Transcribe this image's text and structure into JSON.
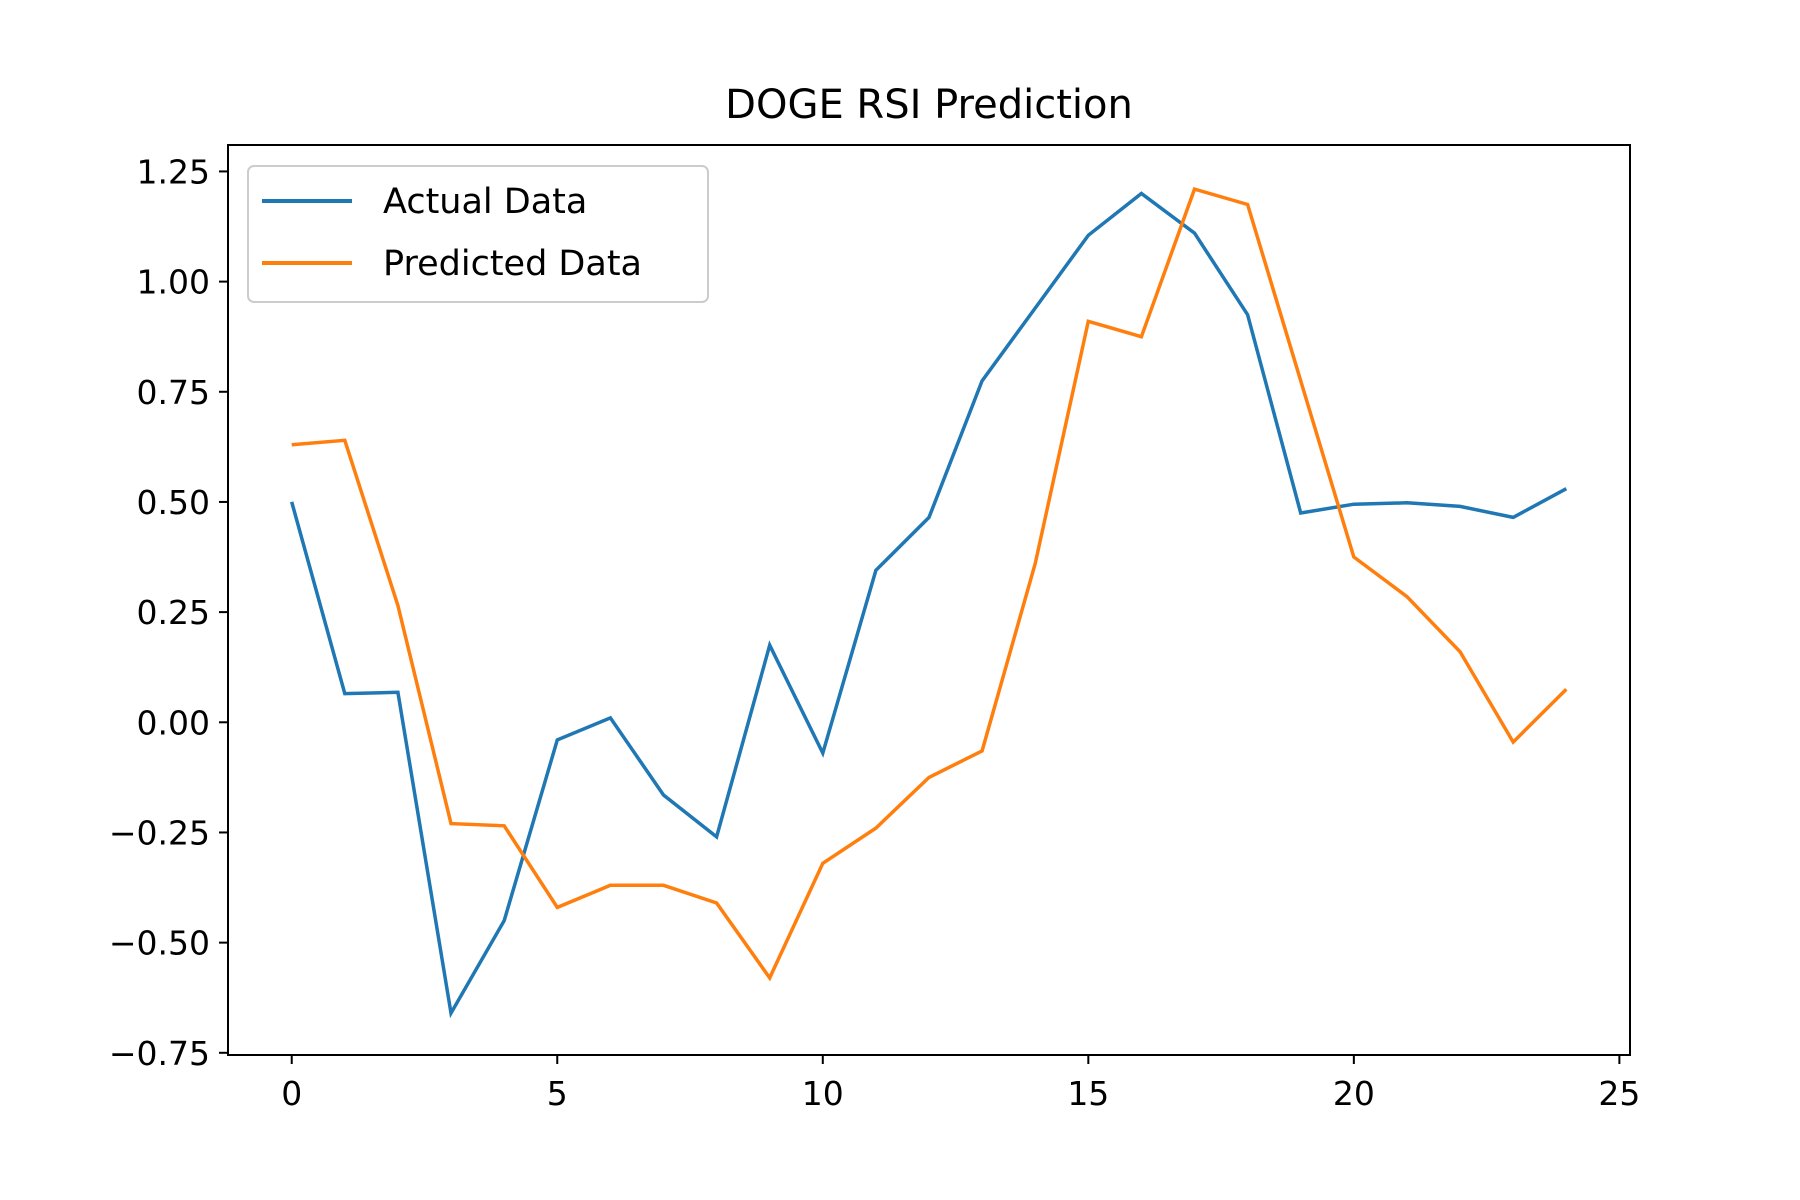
{
  "chart_data": {
    "type": "line",
    "title": "DOGE RSI Prediction",
    "xlabel": "",
    "ylabel": "",
    "xlim": [
      -1.2,
      25.2
    ],
    "ylim": [
      -0.755,
      1.31
    ],
    "xticks": [
      0,
      5,
      10,
      15,
      20,
      25
    ],
    "xtick_labels": [
      "0",
      "5",
      "10",
      "15",
      "20",
      "25"
    ],
    "yticks": [
      1.25,
      1.0,
      0.75,
      0.5,
      0.25,
      0.0,
      -0.25,
      -0.5,
      -0.75
    ],
    "ytick_labels": [
      "1.25",
      "1.00",
      "0.75",
      "0.50",
      "0.25",
      "0.00",
      "−0.25",
      "−0.50",
      "−0.75"
    ],
    "grid": false,
    "legend_position": "top-left",
    "x": [
      0,
      1,
      2,
      3,
      4,
      5,
      6,
      7,
      8,
      9,
      10,
      11,
      12,
      13,
      14,
      15,
      16,
      17,
      18,
      19,
      20,
      21,
      22,
      23,
      24
    ],
    "series": [
      {
        "name": "Actual Data",
        "color": "#1f77b4",
        "values": [
          0.5,
          0.065,
          0.068,
          -0.66,
          -0.45,
          -0.04,
          0.01,
          -0.165,
          -0.26,
          0.175,
          -0.07,
          0.345,
          0.465,
          0.775,
          0.94,
          1.105,
          1.2,
          1.11,
          0.925,
          0.475,
          0.495,
          0.498,
          0.49,
          0.465,
          0.53
        ]
      },
      {
        "name": "Predicted Data",
        "color": "#ff7f0e",
        "values": [
          0.63,
          0.64,
          0.265,
          -0.23,
          -0.235,
          -0.42,
          -0.37,
          -0.37,
          -0.41,
          -0.58,
          -0.32,
          -0.24,
          -0.125,
          -0.065,
          0.36,
          0.91,
          0.875,
          1.21,
          1.175,
          0.775,
          0.375,
          0.285,
          0.16,
          -0.045,
          0.075
        ]
      }
    ]
  }
}
